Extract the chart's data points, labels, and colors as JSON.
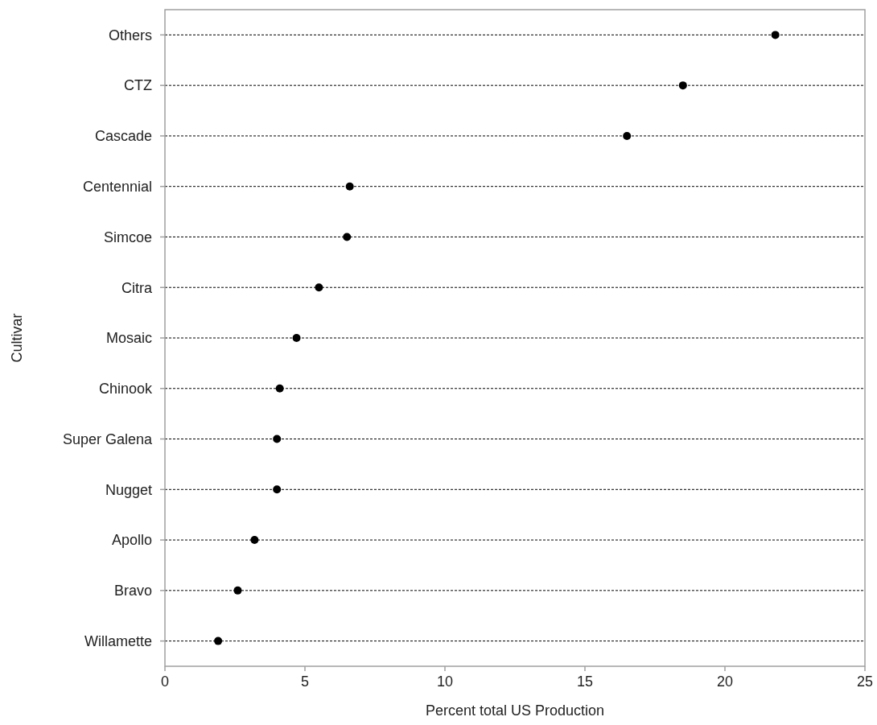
{
  "chart_data": {
    "type": "scatter",
    "orientation": "horizontal",
    "xlabel": "Percent total US Production",
    "ylabel": "Cultivar",
    "categories": [
      "Others",
      "CTZ",
      "Cascade",
      "Centennial",
      "Simcoe",
      "Citra",
      "Mosaic",
      "Chinook",
      "Super Galena",
      "Nugget",
      "Apollo",
      "Bravo",
      "Willamette"
    ],
    "values": [
      21.8,
      18.5,
      16.5,
      6.6,
      6.5,
      5.5,
      4.7,
      4.1,
      4.0,
      4.0,
      3.2,
      2.6,
      1.9
    ],
    "color": "#000000",
    "marker": "circle",
    "grid": "y",
    "xlim": [
      0,
      25
    ],
    "xticks": [
      0,
      5,
      10,
      15,
      20,
      25
    ]
  }
}
